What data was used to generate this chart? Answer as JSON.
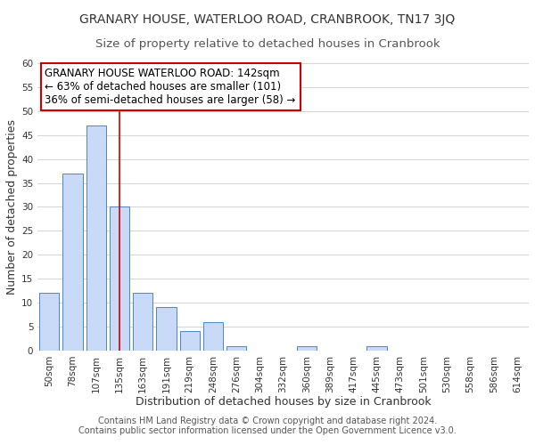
{
  "title": "GRANARY HOUSE, WATERLOO ROAD, CRANBROOK, TN17 3JQ",
  "subtitle": "Size of property relative to detached houses in Cranbrook",
  "xlabel": "Distribution of detached houses by size in Cranbrook",
  "ylabel": "Number of detached properties",
  "bar_labels": [
    "50sqm",
    "78sqm",
    "107sqm",
    "135sqm",
    "163sqm",
    "191sqm",
    "219sqm",
    "248sqm",
    "276sqm",
    "304sqm",
    "332sqm",
    "360sqm",
    "389sqm",
    "417sqm",
    "445sqm",
    "473sqm",
    "501sqm",
    "530sqm",
    "558sqm",
    "586sqm",
    "614sqm"
  ],
  "bar_values": [
    12,
    37,
    47,
    30,
    12,
    9,
    4,
    6,
    1,
    0,
    0,
    1,
    0,
    0,
    1,
    0,
    0,
    0,
    0,
    0,
    0
  ],
  "bar_color": "#c9daf8",
  "bar_edge_color": "#4a86c8",
  "vline_x": 3,
  "vline_color": "#cc0000",
  "ylim": [
    0,
    60
  ],
  "yticks": [
    0,
    5,
    10,
    15,
    20,
    25,
    30,
    35,
    40,
    45,
    50,
    55,
    60
  ],
  "annotation_title": "GRANARY HOUSE WATERLOO ROAD: 142sqm",
  "annotation_line1": "← 63% of detached houses are smaller (101)",
  "annotation_line2": "36% of semi-detached houses are larger (58) →",
  "annotation_box_color": "#ffffff",
  "annotation_box_edge": "#cc0000",
  "footer1": "Contains HM Land Registry data © Crown copyright and database right 2024.",
  "footer2": "Contains public sector information licensed under the Open Government Licence v3.0.",
  "title_fontsize": 10,
  "subtitle_fontsize": 9.5,
  "axis_label_fontsize": 9,
  "tick_fontsize": 7.5,
  "annotation_fontsize": 8.5,
  "footer_fontsize": 7,
  "background_color": "#ffffff",
  "grid_color": "#cccccc"
}
